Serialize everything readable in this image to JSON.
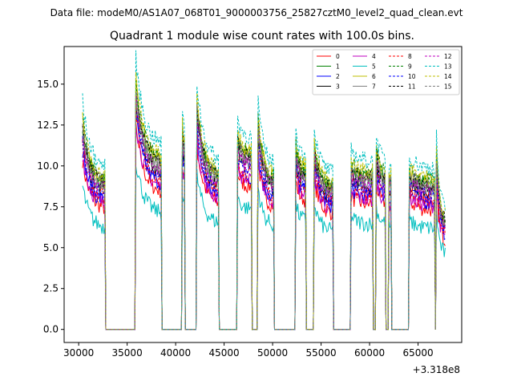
{
  "header": {
    "data_file": "Data file: modeM0/AS1A07_068T01_9000003756_25827cztM0_level2_quad_clean.evt"
  },
  "chart_data": {
    "type": "line",
    "title": "Quadrant 1 module wise count rates with 100.0s bins.",
    "xlabel": "",
    "ylabel": "",
    "x_offset_label": "+3.318e8",
    "xlim": [
      28500,
      69500
    ],
    "ylim": [
      -0.8,
      17.3
    ],
    "x_ticks": [
      30000,
      35000,
      40000,
      45000,
      50000,
      55000,
      60000,
      65000
    ],
    "x_tick_labels": [
      "30000",
      "35000",
      "40000",
      "45000",
      "50000",
      "55000",
      "60000",
      "65000"
    ],
    "y_ticks": [
      0.0,
      2.5,
      5.0,
      7.5,
      10.0,
      12.5,
      15.0
    ],
    "y_tick_labels": [
      "0.0",
      "2.5",
      "5.0",
      "7.5",
      "10.0",
      "12.5",
      "15.0"
    ],
    "grid": false,
    "legend_position": "top-right",
    "segments": [
      {
        "start": 30400,
        "end": 32700,
        "peak": 12.5,
        "end_val": 8.8
      },
      {
        "start": 35900,
        "end": 38500,
        "peak": 14.8,
        "end_val": 10.0
      },
      {
        "start": 40700,
        "end": 40900,
        "peak": 12.0,
        "end_val": 11.0
      },
      {
        "start": 42200,
        "end": 44400,
        "peak": 13.5,
        "end_val": 9.2
      },
      {
        "start": 46400,
        "end": 47800,
        "peak": 11.5,
        "end_val": 10.5
      },
      {
        "start": 48500,
        "end": 50100,
        "peak": 12.5,
        "end_val": 9.0
      },
      {
        "start": 52400,
        "end": 53400,
        "peak": 11.0,
        "end_val": 9.5
      },
      {
        "start": 54300,
        "end": 56200,
        "peak": 11.0,
        "end_val": 8.5
      },
      {
        "start": 58100,
        "end": 60300,
        "peak": 9.8,
        "end_val": 9.2
      },
      {
        "start": 60700,
        "end": 61600,
        "peak": 10.8,
        "end_val": 9.3
      },
      {
        "start": 62000,
        "end": 62200,
        "peak": 9.0,
        "end_val": 9.0
      },
      {
        "start": 64100,
        "end": 66700,
        "peak": 9.5,
        "end_val": 8.8
      },
      {
        "start": 66900,
        "end": 67800,
        "peak": 10.5,
        "end_val": 6.5
      }
    ],
    "series": [
      {
        "name": "0",
        "color": "#ff0000",
        "dashed": false,
        "scale": 0.83
      },
      {
        "name": "1",
        "color": "#008000",
        "dashed": false,
        "scale": 1.0
      },
      {
        "name": "2",
        "color": "#0000ff",
        "dashed": false,
        "scale": 0.88
      },
      {
        "name": "3",
        "color": "#000000",
        "dashed": false,
        "scale": 0.95
      },
      {
        "name": "4",
        "color": "#c000c0",
        "dashed": false,
        "scale": 0.86
      },
      {
        "name": "5",
        "color": "#00bfbf",
        "dashed": false,
        "scale": 0.7
      },
      {
        "name": "6",
        "color": "#bfbf00",
        "dashed": false,
        "scale": 1.02
      },
      {
        "name": "7",
        "color": "#808080",
        "dashed": false,
        "scale": 0.97
      },
      {
        "name": "8",
        "color": "#ff0000",
        "dashed": true,
        "scale": 0.9
      },
      {
        "name": "9",
        "color": "#008000",
        "dashed": true,
        "scale": 1.03
      },
      {
        "name": "10",
        "color": "#0000ff",
        "dashed": true,
        "scale": 0.92
      },
      {
        "name": "11",
        "color": "#000000",
        "dashed": true,
        "scale": 1.0
      },
      {
        "name": "12",
        "color": "#c000c0",
        "dashed": true,
        "scale": 0.96
      },
      {
        "name": "13",
        "color": "#00bfbf",
        "dashed": true,
        "scale": 1.12
      },
      {
        "name": "14",
        "color": "#bfbf00",
        "dashed": true,
        "scale": 1.05
      },
      {
        "name": "15",
        "color": "#808080",
        "dashed": true,
        "scale": 0.99
      }
    ]
  }
}
